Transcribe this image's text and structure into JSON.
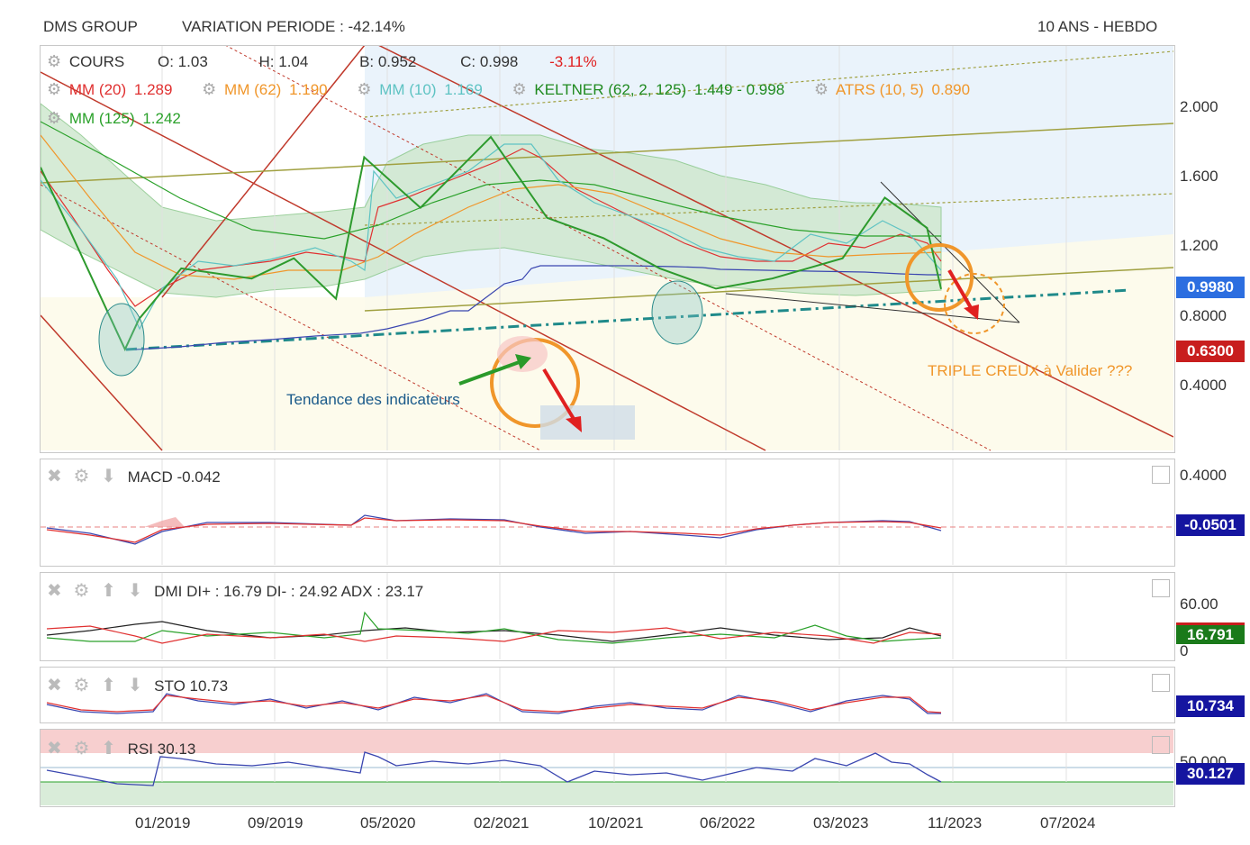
{
  "header": {
    "title": "DMS GROUP",
    "variation": "VARIATION PERIODE : -42.14%",
    "horizon": "10 ANS - HEBDO"
  },
  "legend": {
    "cours": {
      "label": "COURS",
      "o": "O: 1.03",
      "h": "H: 1.04",
      "b": "B: 0.952",
      "c": "C: 0.998",
      "chg": "-3.11%"
    },
    "mm20": {
      "label": "MM (20)",
      "value": "1.289",
      "color": "#e03030"
    },
    "mm62": {
      "label": "MM (62)",
      "value": "1.190",
      "color": "#f0962a"
    },
    "mm10": {
      "label": "MM (10)",
      "value": "1.169",
      "color": "#5ec3c3"
    },
    "keltner": {
      "label": "KELTNER (62, 2, 125)",
      "value": "1.449 - 0.998",
      "color": "#1f8a1f"
    },
    "atrs": {
      "label": "ATRS (10, 5)",
      "value": "0.890",
      "color": "#f0962a"
    },
    "mm125": {
      "label": "MM (125)",
      "value": "1.242",
      "color": "#2aa12a"
    }
  },
  "annotations": {
    "tendance": "Tendance des indicateurs",
    "triple": "TRIPLE CREUX à Valider ???"
  },
  "price_axis": {
    "ticks": [
      "2.000",
      "1.600",
      "1.200",
      "0.8000",
      "0.4000"
    ],
    "last_badge": "0.9980",
    "last_color": "#2c6ee0",
    "atrs_badge": "0.6300",
    "atrs_color": "#c81e1e"
  },
  "macd": {
    "label": "MACD",
    "value": "-0.042",
    "axis_top": "0.4000",
    "badge": "-0.0501",
    "badge_color": "#1515a0"
  },
  "dmi": {
    "label": "DMI",
    "value": "DI+ : 16.79 DI- : 24.92 ADX : 23.17",
    "axis_top": "60.00",
    "axis_zero": "0",
    "badge": "16.791",
    "badge_color": "#1a7a1a"
  },
  "sto": {
    "label": "STO",
    "value": "10.73",
    "badge": "10.734",
    "badge_color": "#1515a0"
  },
  "rsi": {
    "label": "RSI",
    "value": "30.13",
    "axis_top": "50.000",
    "badge": "30.127",
    "badge_color": "#1515a0"
  },
  "x_axis": [
    "01/2019",
    "09/2019",
    "05/2020",
    "02/2021",
    "10/2021",
    "06/2022",
    "03/2023",
    "11/2023",
    "07/2024"
  ],
  "chart_data": {
    "type": "line",
    "title": "DMS GROUP",
    "x": [
      "2018-06",
      "2018-09",
      "2018-12",
      "2019-01",
      "2019-04",
      "2019-09",
      "2019-12",
      "2020-03",
      "2020-05",
      "2020-09",
      "2021-02",
      "2021-06",
      "2021-10",
      "2022-02",
      "2022-06",
      "2022-10",
      "2023-03",
      "2023-06",
      "2023-09",
      "2023-10"
    ],
    "series": [
      {
        "name": "COURS",
        "values": [
          1.6,
          1.15,
          0.7,
          0.85,
          1.1,
          1.05,
          1.15,
          0.95,
          1.65,
          1.4,
          1.75,
          1.35,
          1.25,
          1.1,
          1.0,
          1.05,
          1.15,
          1.45,
          1.3,
          0.998
        ]
      }
    ],
    "ylim": [
      0.2,
      2.2
    ],
    "xlabel": "",
    "ylabel": ""
  }
}
